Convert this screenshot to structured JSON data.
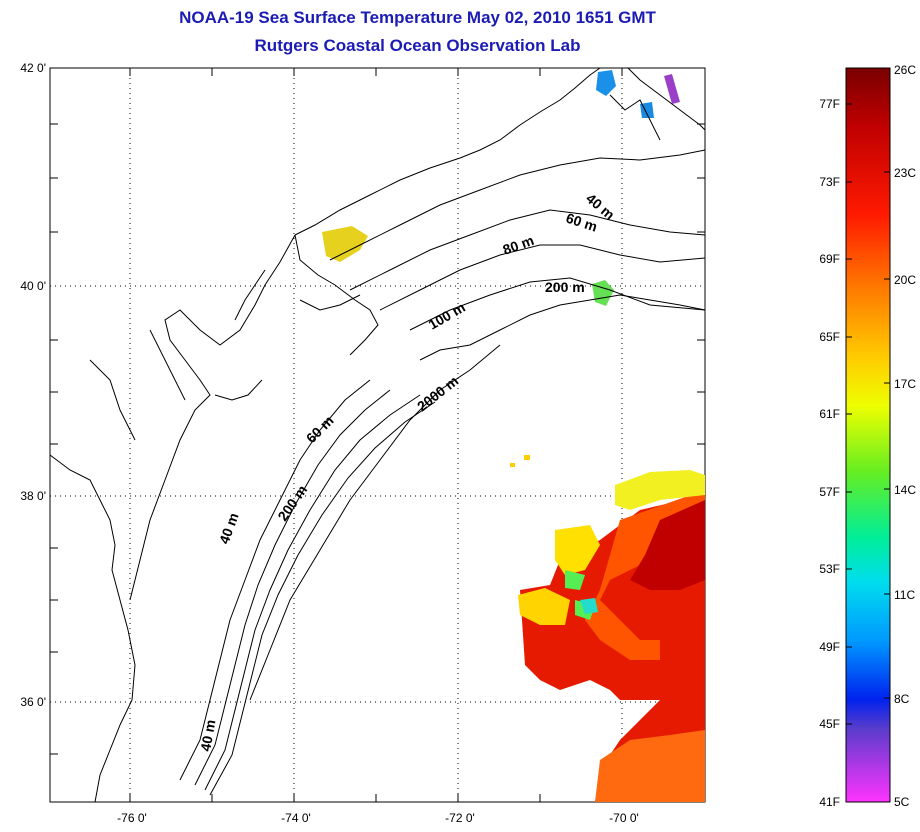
{
  "title": "NOAA-19 Sea Surface Temperature May 02, 2010 1651 GMT",
  "subtitle": "Rutgers Coastal Ocean Observation Lab",
  "lat_labels": [
    "42 0'",
    "40 0'",
    "38 0'",
    "36 0'"
  ],
  "lon_labels": [
    "-76 0'",
    "-74 0'",
    "-72 0'",
    "-70 0'"
  ],
  "contour_labels": [
    "40 m",
    "60 m",
    "80 m",
    "200 m",
    "100 m",
    "2000 m",
    "60 m",
    "200 m",
    "40 m",
    "40 m"
  ],
  "colorbar": {
    "fahrenheit_labels": [
      "77F",
      "73F",
      "69F",
      "65F",
      "61F",
      "57F",
      "53F",
      "49F",
      "45F",
      "41F"
    ],
    "celsius_labels": [
      "26C",
      "23C",
      "20C",
      "17C",
      "14C",
      "11C",
      "8C",
      "5C"
    ],
    "colors": [
      "#7a0000",
      "#e00000",
      "#ff3300",
      "#ff9900",
      "#ffee00",
      "#aaff00",
      "#33ee44",
      "#00eecc",
      "#00bbff",
      "#0044ff",
      "#0000dd",
      "#8844cc",
      "#ff33ff"
    ]
  }
}
